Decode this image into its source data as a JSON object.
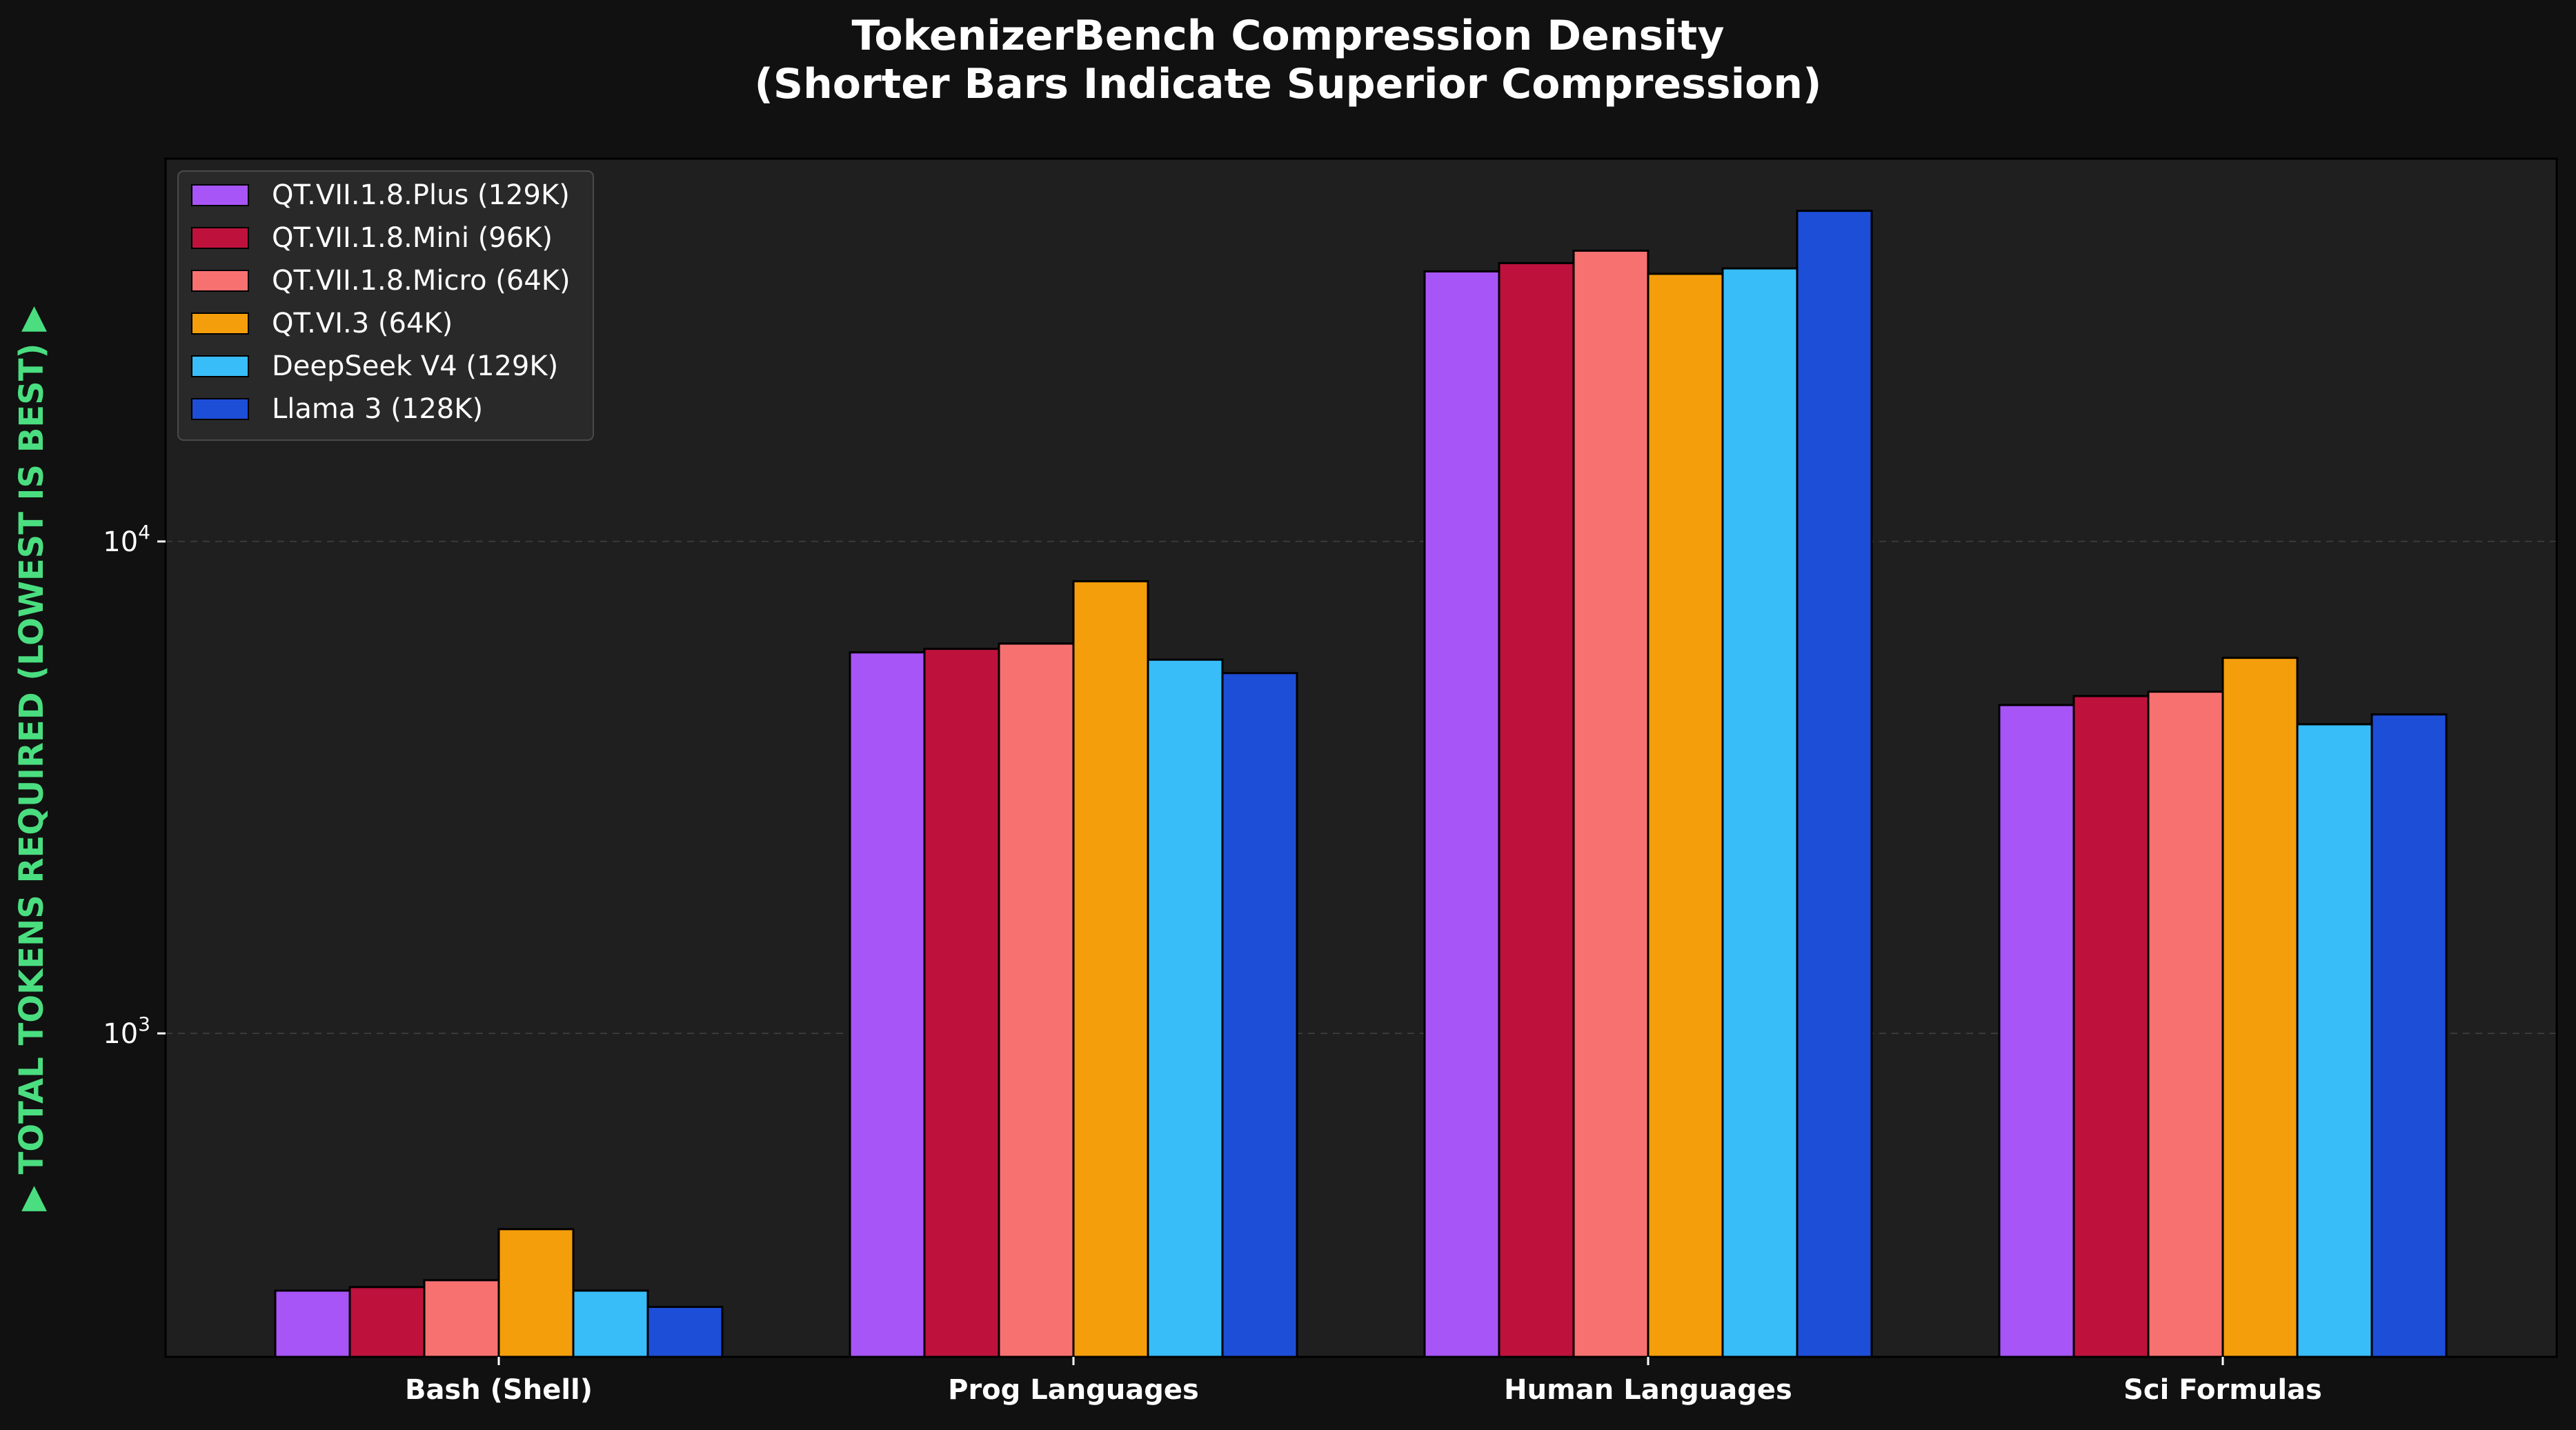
{
  "chart_data": {
    "type": "bar",
    "title": "TokenizerBench Compression Density",
    "subtitle": "(Shorter Bars Indicate Superior Compression)",
    "xlabel": "",
    "ylabel": "▶ TOTAL TOKENS REQUIRED (LOWEST IS BEST) ▶",
    "yscale": "log",
    "ylim": [
      220,
      60000
    ],
    "grid": true,
    "legend_position": "top-left",
    "categories": [
      "Bash (Shell)",
      "Prog Languages",
      "Human Languages",
      "Sci Formulas"
    ],
    "series": [
      {
        "name": "QT.VII.1.8.Plus (129K)",
        "color": "#a855f7",
        "values": [
          300,
          5950,
          35400,
          4650
        ]
      },
      {
        "name": "QT.VII.1.8.Mini (96K)",
        "color": "#be123c",
        "values": [
          305,
          6050,
          36800,
          4850
        ]
      },
      {
        "name": "QT.VII.1.8.Micro (64K)",
        "color": "#f87171",
        "values": [
          315,
          6200,
          39000,
          4950
        ]
      },
      {
        "name": "QT.VI.3 (64K)",
        "color": "#f59e0b",
        "values": [
          400,
          8300,
          35000,
          5800
        ]
      },
      {
        "name": "DeepSeek V4 (129K)",
        "color": "#38bdf8",
        "values": [
          300,
          5750,
          35900,
          4250
        ]
      },
      {
        "name": "Llama 3 (128K)",
        "color": "#1d4ed8",
        "values": [
          278,
          5400,
          47000,
          4450
        ]
      }
    ],
    "y_ticks": [
      {
        "value": 1000,
        "label": "10",
        "exp": "3"
      },
      {
        "value": 10000,
        "label": "10",
        "exp": "4"
      }
    ],
    "colors": {
      "background": "#111111",
      "plot_background": "#1f1f1f",
      "ylabel": "#4ade80",
      "text": "#ffffff",
      "grid": "#3a3a3a"
    }
  }
}
